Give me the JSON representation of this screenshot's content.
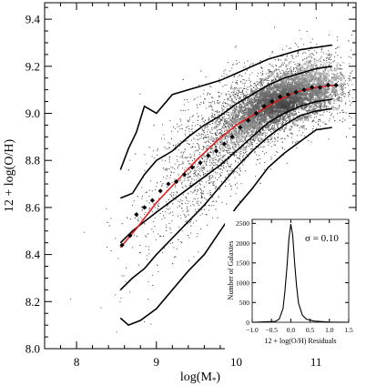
{
  "chart_data": [
    {
      "type": "scatter",
      "title": "",
      "xlabel": "log(M",
      "xlabel_sub": "*",
      "xlabel_close": ")",
      "ylabel": "12 + log(O/H)",
      "xlim": [
        7.6,
        11.5
      ],
      "ylim": [
        8.0,
        9.47
      ],
      "x_ticks": [
        8,
        9,
        10,
        11
      ],
      "x_tick_labels": [
        "8",
        "9",
        "10",
        "11"
      ],
      "y_ticks": [
        8.0,
        8.2,
        8.4,
        8.6,
        8.8,
        9.0,
        9.2,
        9.4
      ],
      "y_tick_labels": [
        "8.0",
        "8.2",
        "8.4",
        "8.6",
        "8.8",
        "9.0",
        "9.2",
        "9.4"
      ],
      "grid": false,
      "colors": {
        "density": "#1a1a1a",
        "fit": "#e02020",
        "contour": "#000000",
        "median": "#000000"
      },
      "median_points": {
        "x": [
          8.57,
          8.67,
          8.75,
          8.85,
          8.95,
          9.05,
          9.15,
          9.25,
          9.35,
          9.45,
          9.55,
          9.65,
          9.75,
          9.85,
          9.95,
          10.05,
          10.15,
          10.25,
          10.35,
          10.45,
          10.55,
          10.65,
          10.75,
          10.85,
          10.95,
          11.05,
          11.15,
          11.25
        ],
        "y": [
          8.44,
          8.48,
          8.57,
          8.6,
          8.63,
          8.67,
          8.7,
          8.71,
          8.74,
          8.77,
          8.79,
          8.82,
          8.84,
          8.87,
          8.9,
          8.94,
          8.97,
          9.0,
          9.03,
          9.05,
          9.07,
          9.08,
          9.09,
          9.1,
          9.11,
          9.11,
          9.12,
          9.12
        ]
      },
      "fit_curve": {
        "x": [
          8.55,
          8.75,
          9.0,
          9.25,
          9.5,
          9.75,
          10.0,
          10.25,
          10.5,
          10.75,
          11.0,
          11.25
        ],
        "y": [
          8.43,
          8.51,
          8.62,
          8.71,
          8.8,
          8.88,
          8.95,
          9.0,
          9.05,
          9.09,
          9.11,
          9.12
        ]
      },
      "contours": [
        {
          "x": [
            8.55,
            8.65,
            8.75,
            8.85,
            9.0,
            9.2,
            9.4,
            9.6,
            9.8,
            10.0,
            10.2,
            10.4,
            10.6,
            10.8,
            11.0,
            11.2
          ],
          "y": [
            8.76,
            8.85,
            8.92,
            9.03,
            9.0,
            9.08,
            9.1,
            9.12,
            9.14,
            9.17,
            9.2,
            9.23,
            9.25,
            9.27,
            9.28,
            9.29
          ]
        },
        {
          "x": [
            8.55,
            8.7,
            8.85,
            9.0,
            9.2,
            9.4,
            9.6,
            9.8,
            10.0,
            10.2,
            10.4,
            10.6,
            10.8,
            11.0,
            11.2
          ],
          "y": [
            8.64,
            8.66,
            8.74,
            8.8,
            8.84,
            8.9,
            8.95,
            8.99,
            9.04,
            9.08,
            9.12,
            9.15,
            9.17,
            9.19,
            9.2
          ]
        },
        {
          "x": [
            8.55,
            8.7,
            8.85,
            9.0,
            9.2,
            9.4,
            9.6,
            9.8,
            10.0,
            10.2,
            10.4,
            10.6,
            10.8,
            11.0,
            11.2
          ],
          "y": [
            8.45,
            8.5,
            8.54,
            8.58,
            8.63,
            8.68,
            8.73,
            8.78,
            8.84,
            8.9,
            8.96,
            9.0,
            9.03,
            9.05,
            9.06
          ]
        },
        {
          "x": [
            8.55,
            8.7,
            8.85,
            9.0,
            9.2,
            9.4,
            9.6,
            9.8,
            10.0,
            10.2,
            10.4,
            10.6,
            10.8,
            11.0,
            11.2
          ],
          "y": [
            8.25,
            8.3,
            8.34,
            8.4,
            8.47,
            8.54,
            8.61,
            8.69,
            8.77,
            8.84,
            8.9,
            8.95,
            8.99,
            9.01,
            9.02
          ]
        },
        {
          "x": [
            8.55,
            8.65,
            8.8,
            9.0,
            9.2,
            9.4,
            9.6,
            9.8,
            10.0,
            10.2,
            10.4,
            10.6,
            10.8,
            11.0,
            11.2
          ],
          "y": [
            8.13,
            8.1,
            8.12,
            8.17,
            8.25,
            8.33,
            8.4,
            8.5,
            8.6,
            8.68,
            8.77,
            8.83,
            8.88,
            8.93,
            8.94
          ]
        }
      ],
      "density_peak": {
        "x": 10.6,
        "y": 9.03
      }
    },
    {
      "type": "line",
      "title": "",
      "xlabel": "12 + log(O/H) Residuals",
      "ylabel": "Number of Galaxies",
      "xlim": [
        -1.0,
        1.5
      ],
      "ylim": [
        0,
        2600
      ],
      "x_ticks": [
        -1.0,
        -0.5,
        0.0,
        0.5,
        1.0,
        1.5
      ],
      "x_tick_labels": [
        "−1.0",
        "−0.5",
        "0.0",
        "0.5",
        "1.0",
        "1.5"
      ],
      "y_ticks": [
        0,
        500,
        1000,
        1500,
        2000,
        2500
      ],
      "y_tick_labels": [
        "0",
        "500",
        "1000",
        "1500",
        "2000",
        "2500"
      ],
      "annotation": "σ = 0.10",
      "histogram": {
        "x": [
          -1.0,
          -0.4,
          -0.3,
          -0.2,
          -0.15,
          -0.1,
          -0.05,
          0.0,
          0.05,
          0.1,
          0.15,
          0.2,
          0.3,
          0.4,
          0.6,
          1.0,
          1.5
        ],
        "y": [
          0,
          20,
          80,
          350,
          800,
          1400,
          2100,
          2480,
          2200,
          1500,
          900,
          480,
          180,
          80,
          30,
          5,
          0
        ]
      }
    }
  ]
}
